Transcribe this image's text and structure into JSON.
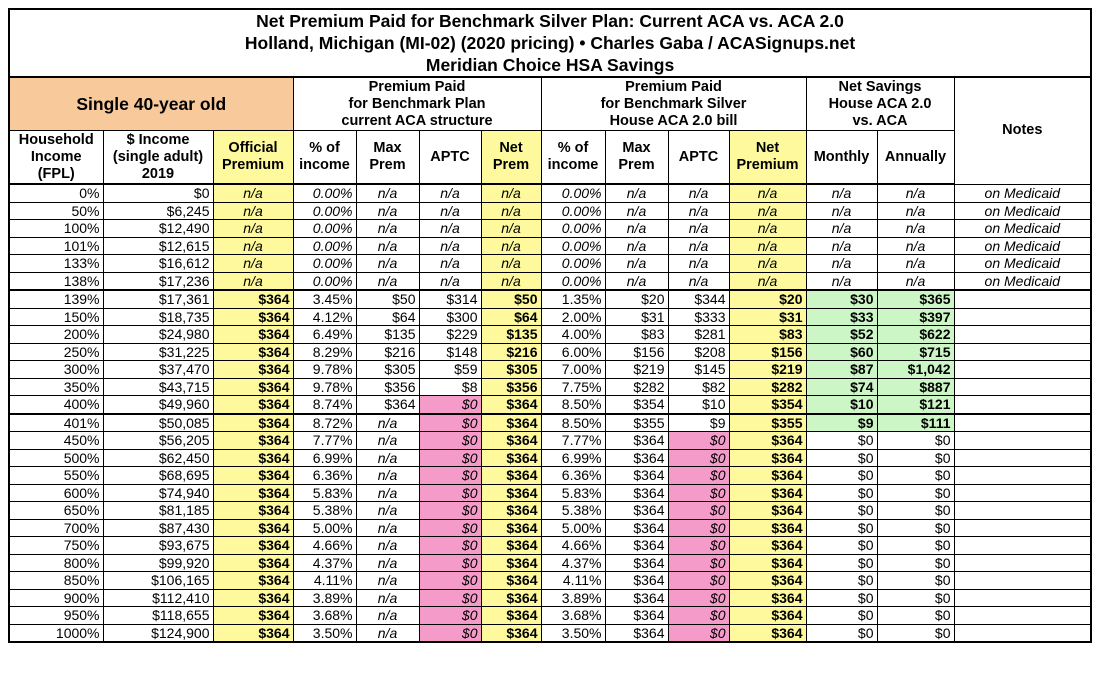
{
  "title": {
    "line1": "Net Premium Paid for Benchmark Silver Plan: Current ACA vs. ACA 2.0",
    "line2": "Holland, Michigan (MI-02) (2020 pricing) • Charles Gaba / ACASignups.net",
    "line3": "Meridian Choice HSA Savings"
  },
  "groups": {
    "profile": "Single 40-year old",
    "current": "Premium Paid\nfor Benchmark Plan\ncurrent ACA structure",
    "house": "Premium Paid\nfor Benchmark Silver\nHouse ACA 2.0 bill",
    "savings": "Net Savings\nHouse ACA 2.0\nvs. ACA",
    "notes": "Notes"
  },
  "columns": [
    "Household Income (FPL)",
    "$ Income (single adult) 2019",
    "Official Premium",
    "% of income",
    "Max Prem",
    "APTC",
    "Net Prem",
    "% of income",
    "Max Prem",
    "APTC",
    "Net Premium",
    "Monthly",
    "Annually"
  ],
  "colors": {
    "yellow": "#fdf99c",
    "orange": "#f8c99b",
    "pink": "#f59bc9",
    "green": "#ccf6c6"
  },
  "rows": [
    [
      "0%",
      "$0",
      "n/a",
      "0.00%",
      "n/a",
      "n/a",
      "n/a",
      "0.00%",
      "n/a",
      "n/a",
      "n/a",
      "n/a",
      "n/a",
      "on Medicaid"
    ],
    [
      "50%",
      "$6,245",
      "n/a",
      "0.00%",
      "n/a",
      "n/a",
      "n/a",
      "0.00%",
      "n/a",
      "n/a",
      "n/a",
      "n/a",
      "n/a",
      "on Medicaid"
    ],
    [
      "100%",
      "$12,490",
      "n/a",
      "0.00%",
      "n/a",
      "n/a",
      "n/a",
      "0.00%",
      "n/a",
      "n/a",
      "n/a",
      "n/a",
      "n/a",
      "on Medicaid"
    ],
    [
      "101%",
      "$12,615",
      "n/a",
      "0.00%",
      "n/a",
      "n/a",
      "n/a",
      "0.00%",
      "n/a",
      "n/a",
      "n/a",
      "n/a",
      "n/a",
      "on Medicaid"
    ],
    [
      "133%",
      "$16,612",
      "n/a",
      "0.00%",
      "n/a",
      "n/a",
      "n/a",
      "0.00%",
      "n/a",
      "n/a",
      "n/a",
      "n/a",
      "n/a",
      "on Medicaid"
    ],
    [
      "138%",
      "$17,236",
      "n/a",
      "0.00%",
      "n/a",
      "n/a",
      "n/a",
      "0.00%",
      "n/a",
      "n/a",
      "n/a",
      "n/a",
      "n/a",
      "on Medicaid"
    ],
    [
      "139%",
      "$17,361",
      "$364",
      "3.45%",
      "$50",
      "$314",
      "$50",
      "1.35%",
      "$20",
      "$344",
      "$20",
      "$30",
      "$365",
      ""
    ],
    [
      "150%",
      "$18,735",
      "$364",
      "4.12%",
      "$64",
      "$300",
      "$64",
      "2.00%",
      "$31",
      "$333",
      "$31",
      "$33",
      "$397",
      ""
    ],
    [
      "200%",
      "$24,980",
      "$364",
      "6.49%",
      "$135",
      "$229",
      "$135",
      "4.00%",
      "$83",
      "$281",
      "$83",
      "$52",
      "$622",
      ""
    ],
    [
      "250%",
      "$31,225",
      "$364",
      "8.29%",
      "$216",
      "$148",
      "$216",
      "6.00%",
      "$156",
      "$208",
      "$156",
      "$60",
      "$715",
      ""
    ],
    [
      "300%",
      "$37,470",
      "$364",
      "9.78%",
      "$305",
      "$59",
      "$305",
      "7.00%",
      "$219",
      "$145",
      "$219",
      "$87",
      "$1,042",
      ""
    ],
    [
      "350%",
      "$43,715",
      "$364",
      "9.78%",
      "$356",
      "$8",
      "$356",
      "7.75%",
      "$282",
      "$82",
      "$282",
      "$74",
      "$887",
      ""
    ],
    [
      "400%",
      "$49,960",
      "$364",
      "8.74%",
      "$364",
      "$0",
      "$364",
      "8.50%",
      "$354",
      "$10",
      "$354",
      "$10",
      "$121",
      ""
    ],
    [
      "401%",
      "$50,085",
      "$364",
      "8.72%",
      "n/a",
      "$0",
      "$364",
      "8.50%",
      "$355",
      "$9",
      "$355",
      "$9",
      "$111",
      ""
    ],
    [
      "450%",
      "$56,205",
      "$364",
      "7.77%",
      "n/a",
      "$0",
      "$364",
      "7.77%",
      "$364",
      "$0",
      "$364",
      "$0",
      "$0",
      ""
    ],
    [
      "500%",
      "$62,450",
      "$364",
      "6.99%",
      "n/a",
      "$0",
      "$364",
      "6.99%",
      "$364",
      "$0",
      "$364",
      "$0",
      "$0",
      ""
    ],
    [
      "550%",
      "$68,695",
      "$364",
      "6.36%",
      "n/a",
      "$0",
      "$364",
      "6.36%",
      "$364",
      "$0",
      "$364",
      "$0",
      "$0",
      ""
    ],
    [
      "600%",
      "$74,940",
      "$364",
      "5.83%",
      "n/a",
      "$0",
      "$364",
      "5.83%",
      "$364",
      "$0",
      "$364",
      "$0",
      "$0",
      ""
    ],
    [
      "650%",
      "$81,185",
      "$364",
      "5.38%",
      "n/a",
      "$0",
      "$364",
      "5.38%",
      "$364",
      "$0",
      "$364",
      "$0",
      "$0",
      ""
    ],
    [
      "700%",
      "$87,430",
      "$364",
      "5.00%",
      "n/a",
      "$0",
      "$364",
      "5.00%",
      "$364",
      "$0",
      "$364",
      "$0",
      "$0",
      ""
    ],
    [
      "750%",
      "$93,675",
      "$364",
      "4.66%",
      "n/a",
      "$0",
      "$364",
      "4.66%",
      "$364",
      "$0",
      "$364",
      "$0",
      "$0",
      ""
    ],
    [
      "800%",
      "$99,920",
      "$364",
      "4.37%",
      "n/a",
      "$0",
      "$364",
      "4.37%",
      "$364",
      "$0",
      "$364",
      "$0",
      "$0",
      ""
    ],
    [
      "850%",
      "$106,165",
      "$364",
      "4.11%",
      "n/a",
      "$0",
      "$364",
      "4.11%",
      "$364",
      "$0",
      "$364",
      "$0",
      "$0",
      ""
    ],
    [
      "900%",
      "$112,410",
      "$364",
      "3.89%",
      "n/a",
      "$0",
      "$364",
      "3.89%",
      "$364",
      "$0",
      "$364",
      "$0",
      "$0",
      ""
    ],
    [
      "950%",
      "$118,655",
      "$364",
      "3.68%",
      "n/a",
      "$0",
      "$364",
      "3.68%",
      "$364",
      "$0",
      "$364",
      "$0",
      "$0",
      ""
    ],
    [
      "1000%",
      "$124,900",
      "$364",
      "3.50%",
      "n/a",
      "$0",
      "$364",
      "3.50%",
      "$364",
      "$0",
      "$364",
      "$0",
      "$0",
      ""
    ]
  ]
}
